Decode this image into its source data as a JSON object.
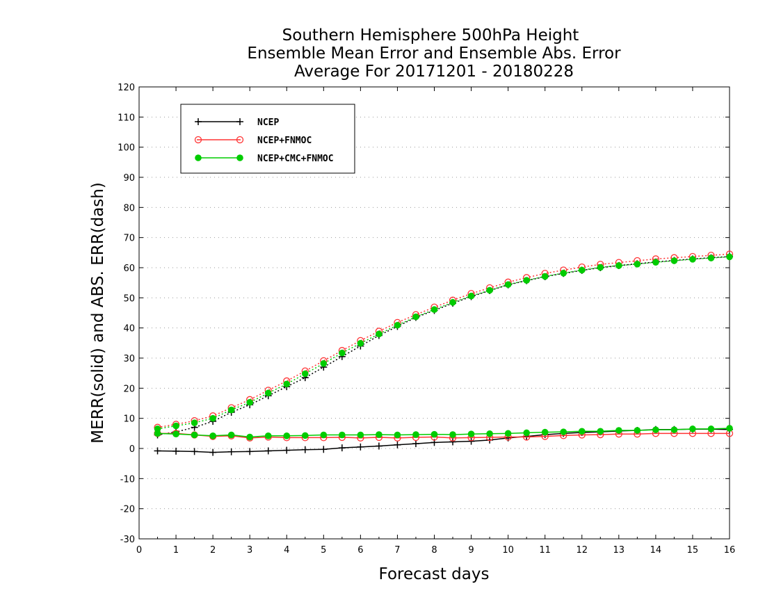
{
  "chart_data": {
    "type": "line",
    "title_lines": [
      "Southern Hemisphere 500hPa Height",
      "Ensemble Mean Error and Ensemble Abs. Error",
      "Average For 20171201 - 20180228"
    ],
    "xlabel": "Forecast days",
    "ylabel": "MERR(solid) and ABS. ERR(dash)",
    "xlim": [
      0,
      16
    ],
    "ylim": [
      -30,
      120
    ],
    "xticks": [
      "0",
      "1",
      "2",
      "3",
      "4",
      "5",
      "6",
      "7",
      "8",
      "9",
      "10",
      "11",
      "12",
      "13",
      "14",
      "15",
      "16"
    ],
    "yticks": [
      "-30",
      "-20",
      "-10",
      "0",
      "10",
      "20",
      "30",
      "40",
      "50",
      "60",
      "70",
      "80",
      "90",
      "100",
      "110",
      "120"
    ],
    "grid": "horizontal-dotted",
    "legend_position": "top-left",
    "x": [
      0.5,
      1,
      1.5,
      2,
      2.5,
      3,
      3.5,
      4,
      4.5,
      5,
      5.5,
      6,
      6.5,
      7,
      7.5,
      8,
      8.5,
      9,
      9.5,
      10,
      10.5,
      11,
      11.5,
      12,
      12.5,
      13,
      13.5,
      14,
      14.5,
      15,
      15.5,
      16
    ],
    "series": [
      {
        "name": "NCEP",
        "color": "#000000",
        "marker": "plus",
        "merr": [
          -0.8,
          -0.9,
          -1.0,
          -1.3,
          -1.1,
          -1.0,
          -0.8,
          -0.6,
          -0.4,
          -0.3,
          0.2,
          0.5,
          0.8,
          1.2,
          1.6,
          2.0,
          2.2,
          2.4,
          2.8,
          3.5,
          4.0,
          4.6,
          5.0,
          5.3,
          5.5,
          5.8,
          6.0,
          6.3,
          6.3,
          6.4,
          6.4,
          6.3
        ],
        "abs_err": [
          4.5,
          5.5,
          7.0,
          9.0,
          12.0,
          14.5,
          17.5,
          20.5,
          23.5,
          27.0,
          30.5,
          34.0,
          37.5,
          40.5,
          43.5,
          45.8,
          48.2,
          50.4,
          52.4,
          54.3,
          55.7,
          57.0,
          58.1,
          59.1,
          60.0,
          60.7,
          61.3,
          61.9,
          62.4,
          62.9,
          63.3,
          63.7
        ]
      },
      {
        "name": "NCEP+FNMOC",
        "color": "#ff3333",
        "marker": "open-circle",
        "merr": [
          5.0,
          5.0,
          4.5,
          4.0,
          4.2,
          3.5,
          3.8,
          3.6,
          3.6,
          3.6,
          3.7,
          3.5,
          3.7,
          3.5,
          3.7,
          3.8,
          3.5,
          3.6,
          3.7,
          3.8,
          3.8,
          4.0,
          4.3,
          4.5,
          4.6,
          4.8,
          4.8,
          5.0,
          5.0,
          5.0,
          5.0,
          5.0
        ],
        "abs_err": [
          7.0,
          8.0,
          9.2,
          10.8,
          13.5,
          16.2,
          19.3,
          22.4,
          25.7,
          29.1,
          32.5,
          35.8,
          38.9,
          41.8,
          44.4,
          46.9,
          49.2,
          51.4,
          53.3,
          55.2,
          56.7,
          58.1,
          59.2,
          60.2,
          61.1,
          61.7,
          62.3,
          62.9,
          63.3,
          63.7,
          64.1,
          64.5
        ]
      },
      {
        "name": "NCEP+CMC+FNMOC",
        "color": "#00cc00",
        "marker": "filled-circle",
        "merr": [
          5.0,
          4.8,
          4.5,
          4.2,
          4.5,
          3.8,
          4.2,
          4.2,
          4.3,
          4.5,
          4.5,
          4.5,
          4.6,
          4.5,
          4.6,
          4.7,
          4.6,
          4.8,
          4.9,
          5.0,
          5.2,
          5.4,
          5.5,
          5.7,
          5.7,
          6.0,
          6.0,
          6.2,
          6.2,
          6.5,
          6.5,
          6.7
        ],
        "abs_err": [
          6.5,
          7.5,
          8.5,
          10.0,
          12.8,
          15.3,
          18.4,
          21.4,
          24.8,
          28.2,
          31.7,
          34.9,
          38.0,
          40.9,
          43.7,
          46.1,
          48.5,
          50.6,
          52.5,
          54.4,
          55.8,
          57.1,
          58.2,
          59.2,
          60.1,
          60.7,
          61.2,
          61.8,
          62.3,
          62.8,
          63.2,
          63.6
        ]
      }
    ]
  }
}
